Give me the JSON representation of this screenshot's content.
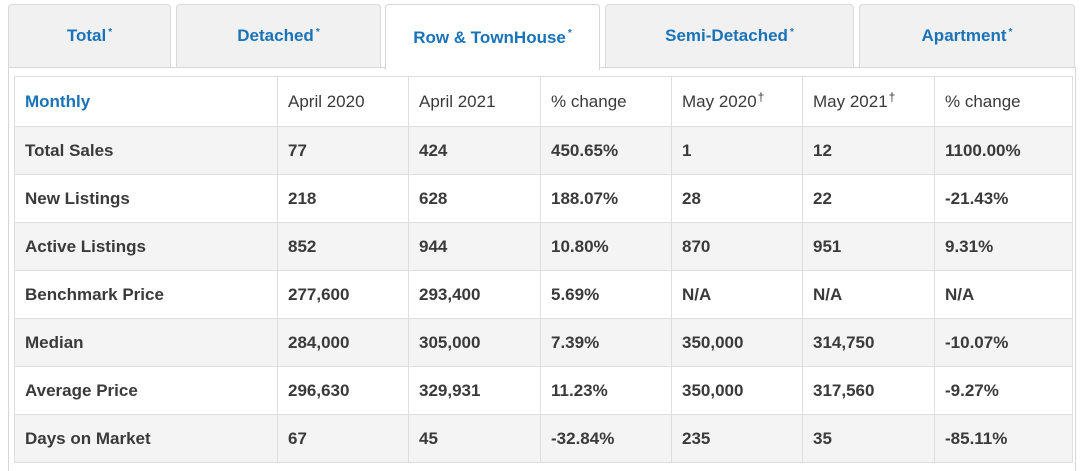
{
  "tabs": [
    {
      "label": "Total",
      "mark": "*",
      "active": false
    },
    {
      "label": "Detached",
      "mark": "*",
      "active": false
    },
    {
      "label": "Row & TownHouse",
      "mark": "*",
      "active": true
    },
    {
      "label": "Semi-Detached",
      "mark": "*",
      "active": false
    },
    {
      "label": "Apartment",
      "mark": "*",
      "active": false
    }
  ],
  "table": {
    "headers": [
      {
        "label": "Monthly",
        "mark": ""
      },
      {
        "label": "April 2020",
        "mark": ""
      },
      {
        "label": "April 2021",
        "mark": ""
      },
      {
        "label": "% change",
        "mark": ""
      },
      {
        "label": "May 2020",
        "mark": "†"
      },
      {
        "label": "May 2021",
        "mark": "†"
      },
      {
        "label": "% change",
        "mark": ""
      }
    ],
    "rows": [
      [
        "Total Sales",
        "77",
        "424",
        "450.65%",
        "1",
        "12",
        "1100.00%"
      ],
      [
        "New Listings",
        "218",
        "628",
        "188.07%",
        "28",
        "22",
        "-21.43%"
      ],
      [
        "Active Listings",
        "852",
        "944",
        "10.80%",
        "870",
        "951",
        "9.31%"
      ],
      [
        "Benchmark Price",
        "277,600",
        "293,400",
        "5.69%",
        "N/A",
        "N/A",
        "N/A"
      ],
      [
        "Median",
        "284,000",
        "305,000",
        "7.39%",
        "350,000",
        "314,750",
        "-10.07%"
      ],
      [
        "Average Price",
        "296,630",
        "329,931",
        "11.23%",
        "350,000",
        "317,560",
        "-9.27%"
      ],
      [
        "Days on Market",
        "67",
        "45",
        "-32.84%",
        "235",
        "35",
        "-85.11%"
      ]
    ]
  },
  "colors": {
    "accent": "#1a73b8",
    "text": "#3a3a3a",
    "row_alt": "#f4f4f4",
    "border": "#dedede"
  }
}
